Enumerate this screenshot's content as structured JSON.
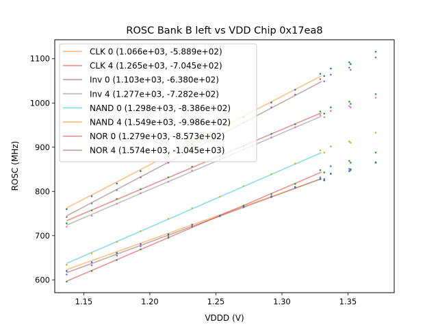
{
  "chart_data": {
    "type": "scatter",
    "title": "ROSC Bank B left vs VDD Chip 0x17ea8",
    "xlabel": "VDDD (V)",
    "ylabel": "ROSC (MHz)",
    "xlim": [
      1.128,
      1.385
    ],
    "ylim": [
      571,
      1143
    ],
    "xticks": [
      1.15,
      1.2,
      1.25,
      1.3,
      1.35
    ],
    "xtick_labels": [
      "1.15",
      "1.20",
      "1.25",
      "1.30",
      "1.35"
    ],
    "yticks": [
      600,
      700,
      800,
      900,
      1000,
      1100
    ],
    "ytick_labels": [
      "600",
      "700",
      "800",
      "900",
      "1000",
      "1100"
    ],
    "grid": false,
    "legend_position": "top-left",
    "fit_range": [
      1.137,
      1.33
    ],
    "fits": [
      {
        "name": "CLK 0 (1.066e+03, -5.889e+02)",
        "slope": 1066,
        "intercept": -588.9,
        "color": "#ff7f0e"
      },
      {
        "name": "CLK 4 (1.265e+03, -7.045e+02)",
        "slope": 1265,
        "intercept": -704.5,
        "color": "#d62728"
      },
      {
        "name": "Inv 0 (1.103e+03, -6.380e+02)",
        "slope": 1103,
        "intercept": -638.0,
        "color": "#8c564b"
      },
      {
        "name": "Inv 4 (1.277e+03, -7.282e+02)",
        "slope": 1277,
        "intercept": -728.2,
        "color": "#7f7f7f"
      },
      {
        "name": "NAND 0 (1.298e+03, -8.386e+02)",
        "slope": 1298,
        "intercept": -838.6,
        "color": "#17becf"
      },
      {
        "name": "NAND 4 (1.549e+03, -9.986e+02)",
        "slope": 1549,
        "intercept": -998.6,
        "color": "#ff7f0e"
      },
      {
        "name": "NOR 0 (1.279e+03, -8.573e+02)",
        "slope": 1279,
        "intercept": -857.3,
        "color": "#d62728"
      },
      {
        "name": "NOR 4 (1.574e+03, -1.045e+03)",
        "slope": 1574,
        "intercept": -1045,
        "color": "#8c564b"
      }
    ],
    "scatter_x": [
      1.137,
      1.156,
      1.175,
      1.193,
      1.214,
      1.232,
      1.253,
      1.271,
      1.292,
      1.31,
      1.329,
      1.332,
      1.337,
      1.351,
      1.352,
      1.371
    ],
    "scatter_series": [
      {
        "name": "NAND 4 pts",
        "color": "#1f77b4",
        "values": [
          760,
          789,
          818,
          846,
          879,
          907,
          940,
          968,
          1001,
          1030,
          1066,
          1061,
          1078,
          1092,
          1088,
          1116
        ]
      },
      {
        "name": "NOR 4 pts",
        "color": "#9467bd",
        "values": [
          742,
          773,
          803,
          832,
          865,
          893,
          926,
          955,
          990,
          1019,
          1054,
          1049,
          1064,
          1080,
          1075,
          1103
        ]
      },
      {
        "name": "CLK 4 pts",
        "color": "#2ca02c",
        "values": [
          728,
          757,
          783,
          805,
          832,
          856,
          880,
          903,
          930,
          952,
          981,
          976,
          990,
          1003,
          998,
          1020
        ]
      },
      {
        "name": "Inv 4 pts",
        "color": "#e377c2",
        "values": [
          720,
          745,
          772,
          796,
          822,
          847,
          872,
          895,
          922,
          945,
          973,
          968,
          982,
          993,
          990,
          1012
        ]
      },
      {
        "name": "NAND 0 pts",
        "color": "#bcbd22",
        "values": [
          634,
          660,
          686,
          710,
          738,
          762,
          788,
          812,
          839,
          863,
          893,
          888,
          902,
          913,
          910,
          933
        ]
      },
      {
        "name": "NOR 0 pts",
        "color": "#2ca02c",
        "values": [
          596,
          620,
          645,
          669,
          695,
          720,
          745,
          768,
          794,
          817,
          848,
          843,
          857,
          869,
          865,
          888
        ]
      },
      {
        "name": "Inv 0 pts",
        "color": "#9467bd",
        "values": [
          612,
          633,
          655,
          676,
          699,
          721,
          744,
          764,
          787,
          808,
          832,
          828,
          840,
          851,
          848,
          866
        ]
      },
      {
        "name": "CLK 0 pts",
        "color": "#1f77b4",
        "values": [
          620,
          640,
          661,
          681,
          703,
          725,
          745,
          766,
          789,
          810,
          828,
          825,
          840,
          846,
          850,
          865
        ]
      }
    ]
  }
}
